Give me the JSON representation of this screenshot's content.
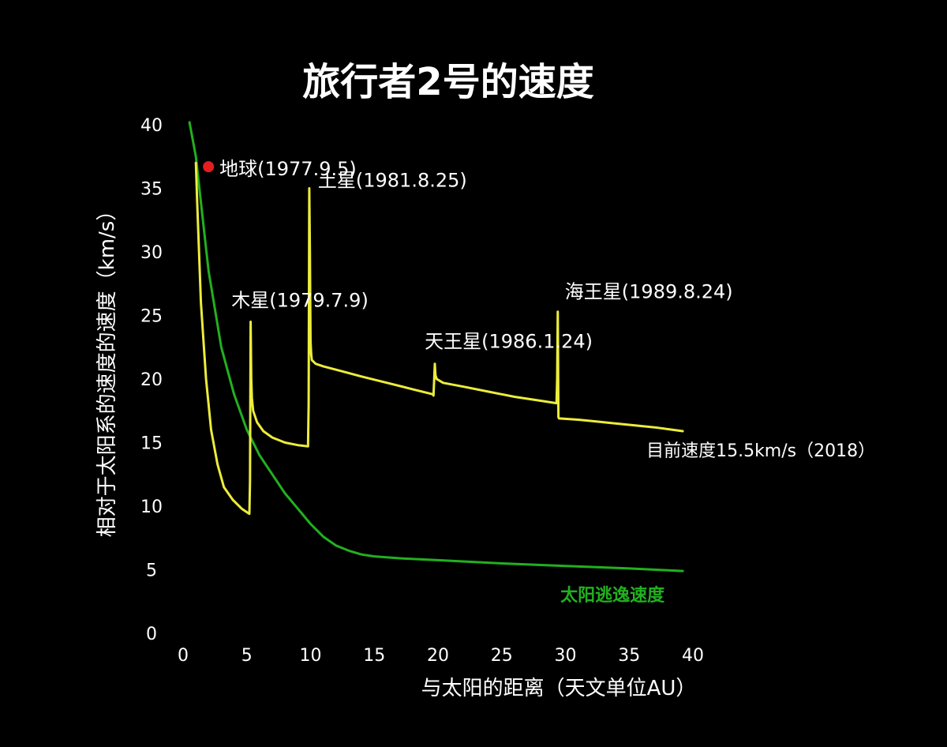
{
  "chart_data": {
    "type": "line",
    "title": "旅行者2号的速度",
    "xlabel": "与太阳的距离（天文单位AU）",
    "ylabel": "相对于太阳系的速度的速度（km/s）",
    "xlim": [
      0,
      40
    ],
    "ylim": [
      0,
      40
    ],
    "x_ticks": [
      "0",
      "5",
      "10",
      "15",
      "20",
      "25",
      "30",
      "35",
      "40"
    ],
    "y_ticks": [
      "0",
      "5",
      "10",
      "15",
      "20",
      "25",
      "30",
      "35",
      "40"
    ],
    "grid": false,
    "colors": {
      "background": "#000000",
      "text": "#ffffff",
      "voyager": "#ecec3c",
      "escape": "#22b020",
      "earth_marker": "#e41e1e"
    },
    "series": [
      {
        "name": "旅行者2号",
        "color": "#ecec3c",
        "x": [
          1.0,
          1.1,
          1.4,
          1.8,
          2.2,
          2.7,
          3.2,
          3.9,
          4.6,
          5.2,
          5.25,
          5.3,
          5.35,
          5.4,
          5.45,
          5.5,
          5.8,
          6.3,
          7.0,
          8.0,
          9.0,
          9.8,
          9.85,
          9.9,
          9.95,
          10.0,
          10.05,
          10.1,
          10.4,
          11.0,
          12.5,
          14.0,
          16.0,
          18.0,
          19.6,
          19.65,
          19.7,
          19.75,
          19.8,
          19.9,
          20.4,
          22.0,
          24.0,
          26.0,
          28.0,
          29.3,
          29.35,
          29.4,
          29.45,
          29.5,
          31.0,
          33.0,
          35.0,
          37.0,
          39.2
        ],
        "y": [
          37.0,
          34.0,
          26.0,
          20.0,
          16.0,
          13.3,
          11.5,
          10.5,
          9.8,
          9.4,
          12.0,
          24.5,
          20.0,
          18.5,
          18.0,
          17.5,
          16.6,
          15.9,
          15.4,
          15.0,
          14.8,
          14.7,
          18.0,
          35.0,
          30.0,
          23.0,
          22.0,
          21.5,
          21.2,
          21.0,
          20.6,
          20.2,
          19.7,
          19.2,
          18.8,
          18.7,
          20.0,
          21.2,
          20.3,
          20.0,
          19.7,
          19.4,
          19.0,
          18.6,
          18.3,
          18.1,
          20.0,
          25.3,
          17.0,
          16.9,
          16.8,
          16.6,
          16.4,
          16.2,
          15.9
        ]
      },
      {
        "name": "太阳逃逸速度",
        "color": "#22b020",
        "x": [
          0.5,
          1.0,
          1.5,
          2.0,
          3.0,
          4.0,
          5.0,
          6.0,
          7.0,
          8.0,
          9.0,
          10.0,
          11.0,
          12.0,
          13.0,
          14.0,
          15.0,
          17.0,
          20.0,
          25.0,
          30.0,
          35.0,
          39.2
        ],
        "y": [
          40.2,
          37.5,
          33.0,
          28.5,
          22.5,
          18.8,
          16.0,
          14.0,
          12.5,
          11.0,
          9.8,
          8.6,
          7.6,
          6.9,
          6.5,
          6.2,
          6.05,
          5.9,
          5.75,
          5.5,
          5.3,
          5.1,
          4.9
        ]
      }
    ],
    "annotations": [
      {
        "text": "地球(1977.9.5)",
        "x": 1.0,
        "y": 36.7,
        "marker": true
      },
      {
        "text": "木星(1979.7.9)",
        "x": 5.4,
        "y": 24.5
      },
      {
        "text": "土星(1981.8.25)",
        "x": 9.9,
        "y": 35.0
      },
      {
        "text": "天王星(1986.1.24)",
        "x": 19.7,
        "y": 21.2
      },
      {
        "text": "海王星(1989.8.24)",
        "x": 29.4,
        "y": 25.3
      },
      {
        "text": "目前速度15.5km/s（2018）",
        "x": 39.2,
        "y": 15.9
      },
      {
        "text": "太阳逃逸速度",
        "x": 39.2,
        "y": 4.9
      }
    ]
  }
}
